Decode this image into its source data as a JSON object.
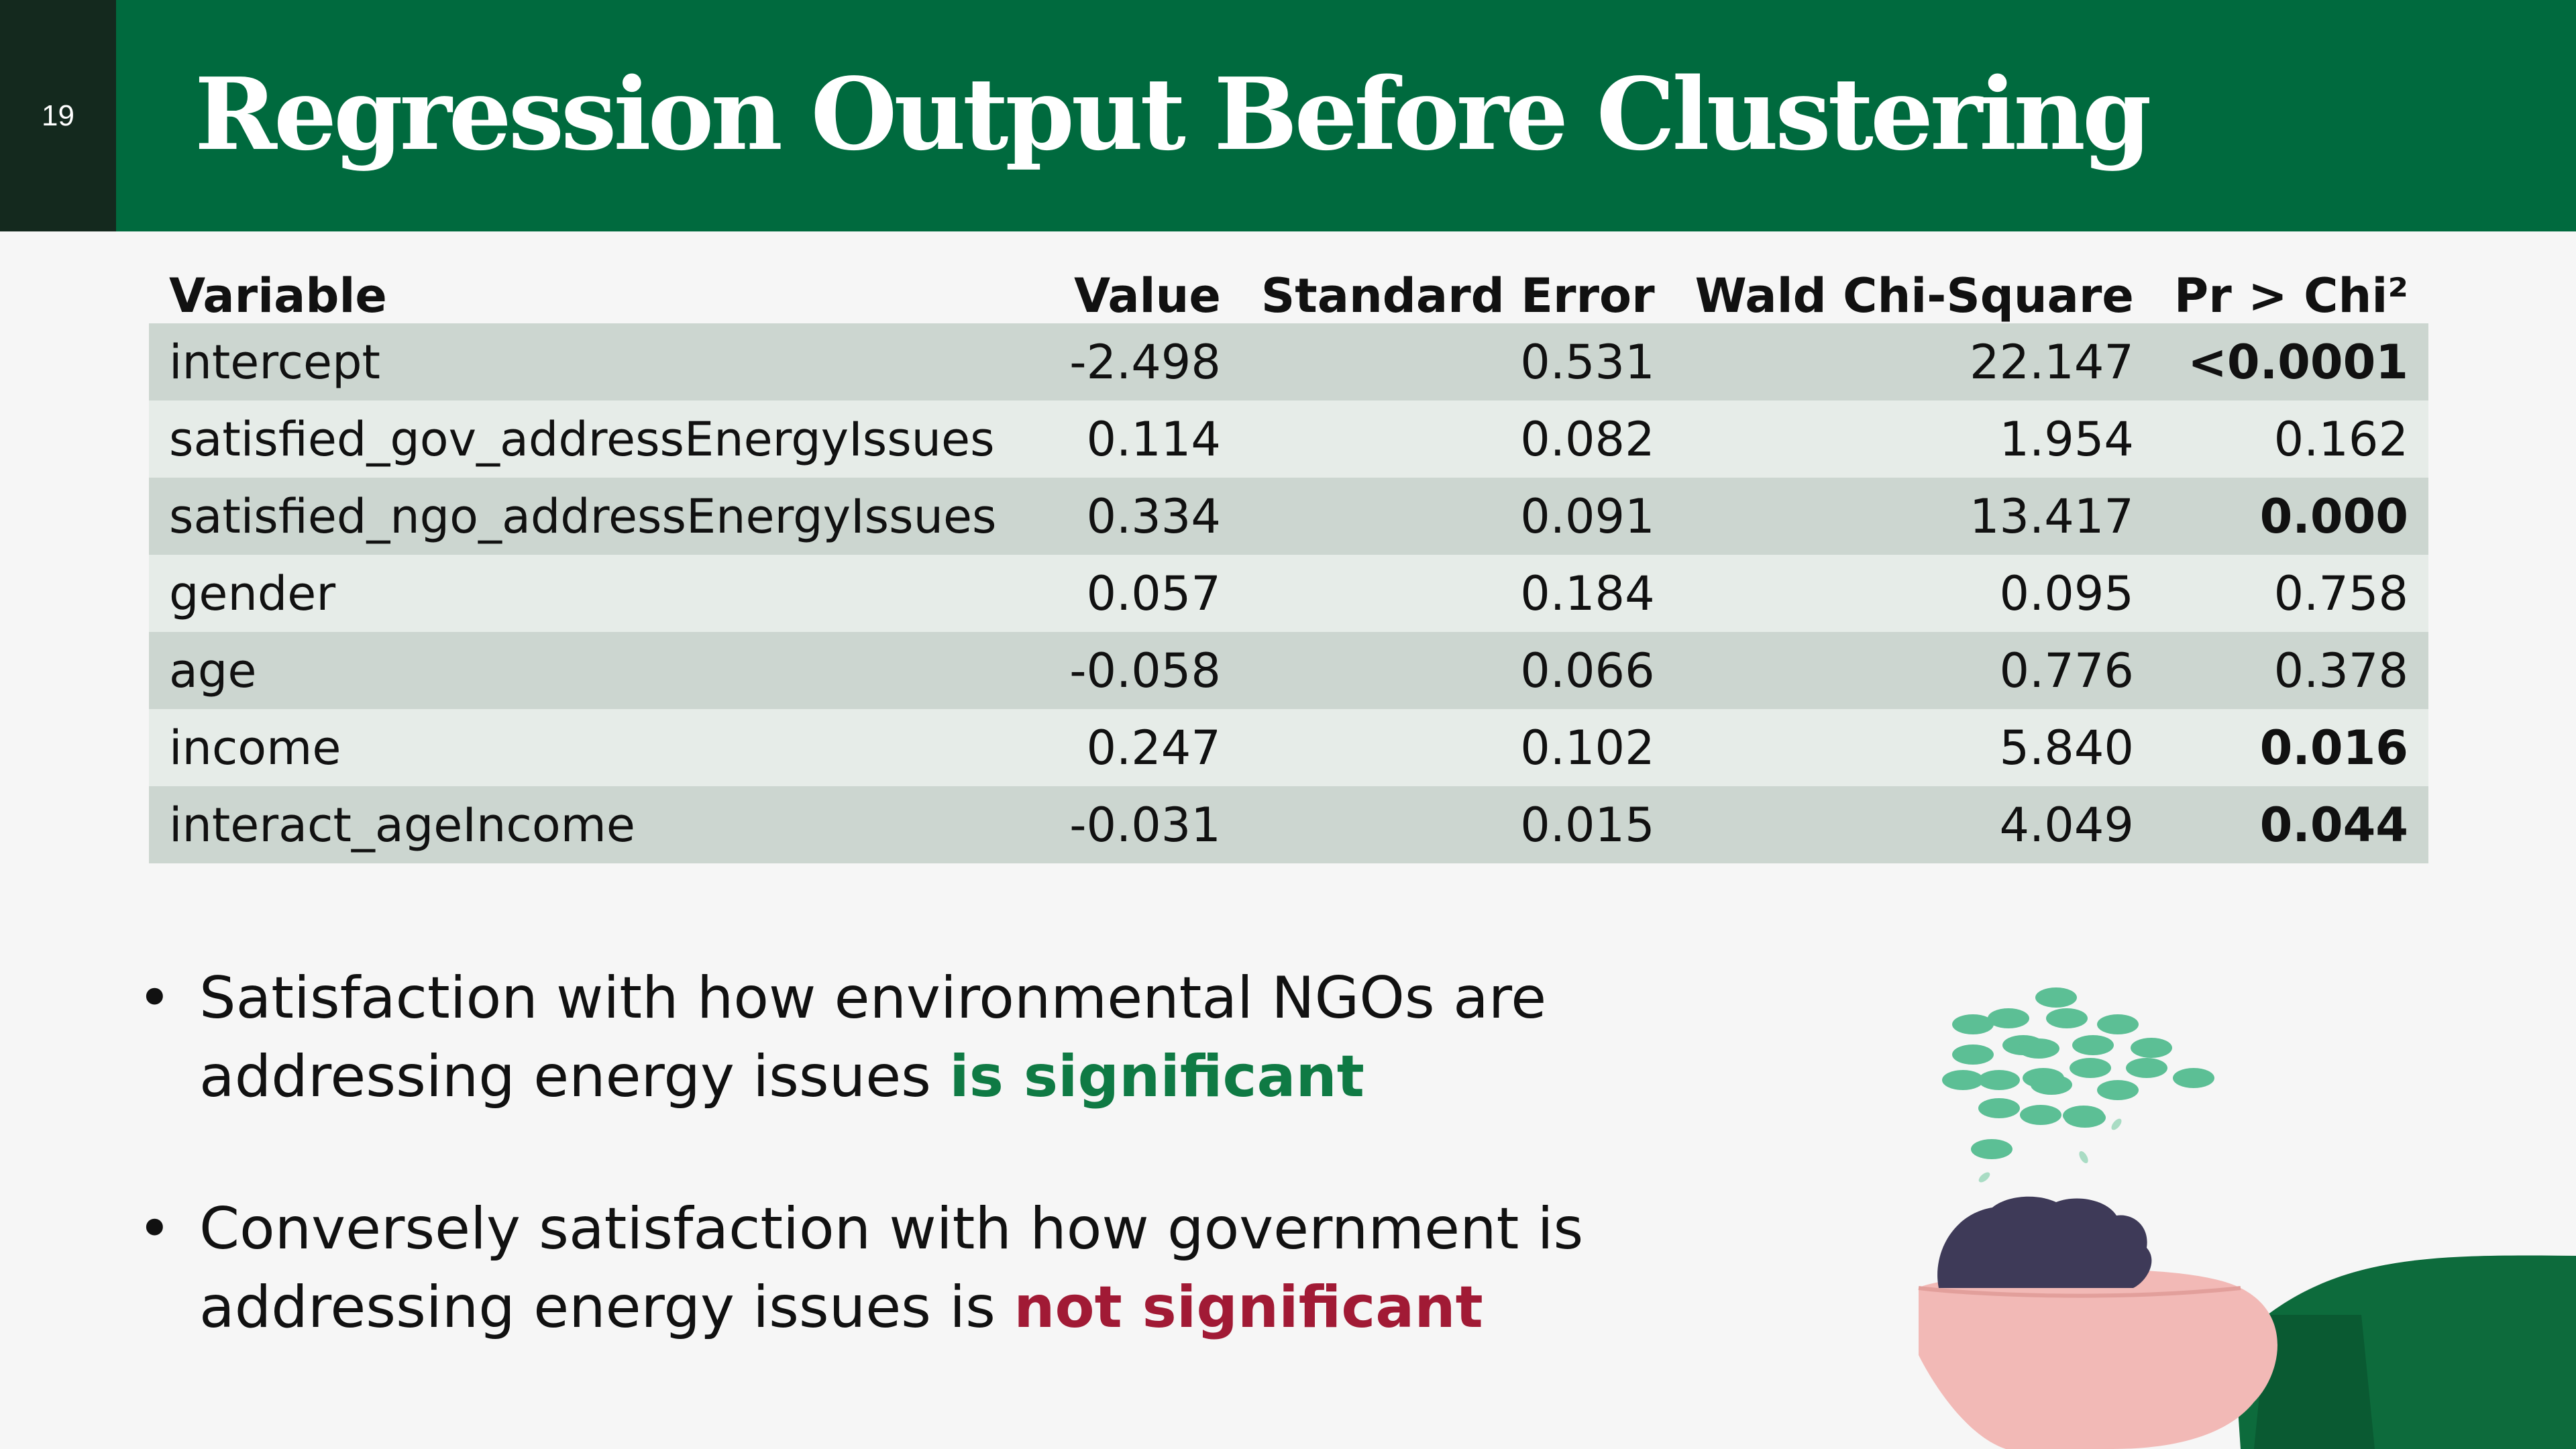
{
  "slide": {
    "page_number": "19",
    "title": "Regression Output Before Clustering"
  },
  "table": {
    "headers": [
      "Variable",
      "Value",
      "Standard Error",
      "Wald Chi-Square",
      "Pr > Chi²"
    ],
    "rows": [
      {
        "variable": "intercept",
        "value": "-2.498",
        "se": "0.531",
        "wald": "22.147",
        "p": "<0.0001",
        "significant": true
      },
      {
        "variable": "satisfied_gov_addressEnergyIssues",
        "value": "0.114",
        "se": "0.082",
        "wald": "1.954",
        "p": "0.162",
        "significant": false
      },
      {
        "variable": "satisfied_ngo_addressEnergyIssues",
        "value": "0.334",
        "se": "0.091",
        "wald": "13.417",
        "p": "0.000",
        "significant": true
      },
      {
        "variable": "gender",
        "value": "0.057",
        "se": "0.184",
        "wald": "0.095",
        "p": "0.758",
        "significant": false
      },
      {
        "variable": "age",
        "value": "-0.058",
        "se": "0.066",
        "wald": "0.776",
        "p": "0.378",
        "significant": false
      },
      {
        "variable": "income",
        "value": "0.247",
        "se": "0.102",
        "wald": "5.840",
        "p": "0.016",
        "significant": true
      },
      {
        "variable": "interact_ageIncome",
        "value": "-0.031",
        "se": "0.015",
        "wald": "4.049",
        "p": "0.044",
        "significant": true
      }
    ]
  },
  "bullets": [
    {
      "marker": "•",
      "line1": "Satisfaction with how environmental NGOs are",
      "line2_plain": "addressing energy issues ",
      "line2_emph": "is significant",
      "emph_color": "#0f7a44"
    },
    {
      "marker": "•",
      "line1": "Conversely satisfaction with how government is",
      "line2_plain": "addressing energy issues is ",
      "line2_emph": "not significant",
      "emph_color": "#a11a35"
    }
  ],
  "colors": {
    "header_bg": "#006a3e",
    "page_num_bg": "#14291e",
    "row_dark": "#ccd6d0",
    "row_light": "#e6ece8",
    "significant_green": "#0f7a44",
    "not_significant_red": "#a11a35"
  },
  "illustration": "hands-holding-soil-with-falling-seeds"
}
